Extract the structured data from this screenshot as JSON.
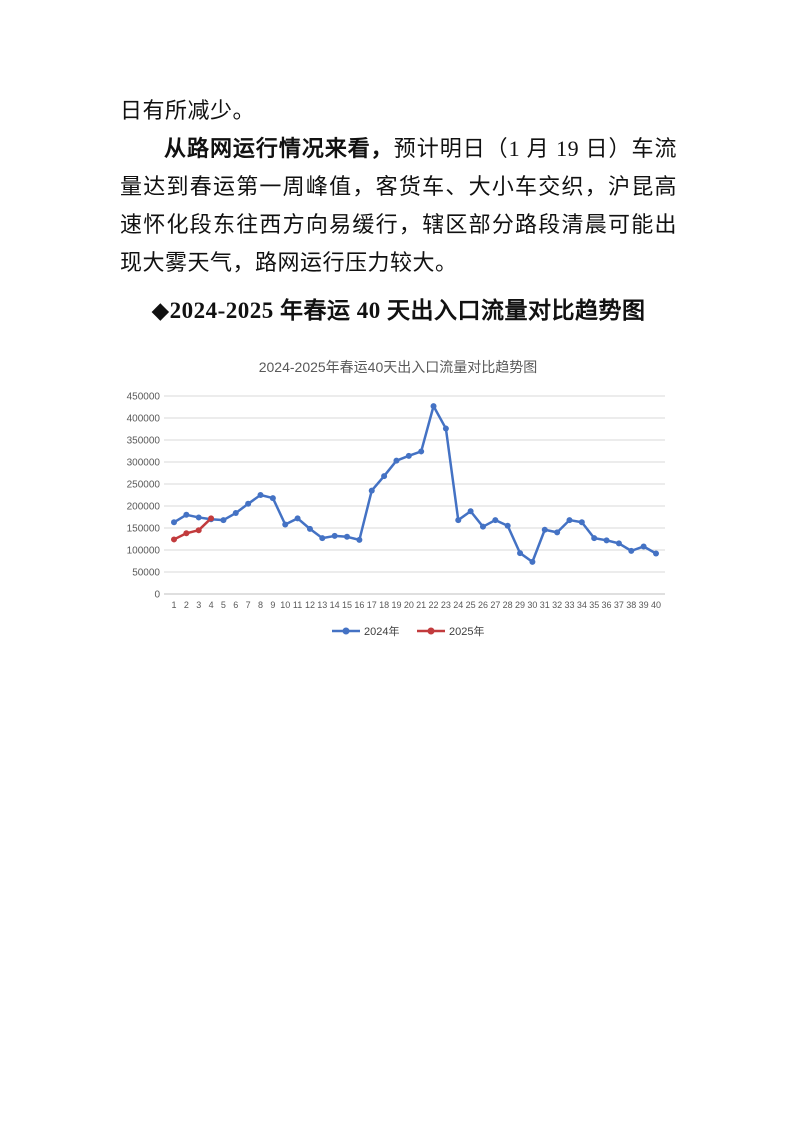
{
  "page": {
    "para1": "日有所减少。",
    "para2_bold": "从路网运行情况来看，",
    "para2_rest": "预计明日（1 月 19 日）车流量达到春运第一周峰值，客货车、大小车交织，沪昆高速怀化段东往西方向易缓行，辖区部分路段清晨可能出现大雾天气，路网运行压力较大。",
    "section_heading": "◆2024-2025 年春运 40 天出入口流量对比趋势图"
  },
  "chart_data": {
    "type": "line",
    "title": "2024-2025年春运40天出入口流量对比趋势图",
    "xlabel": "",
    "ylabel": "",
    "x": [
      1,
      2,
      3,
      4,
      5,
      6,
      7,
      8,
      9,
      10,
      11,
      12,
      13,
      14,
      15,
      16,
      17,
      18,
      19,
      20,
      21,
      22,
      23,
      24,
      25,
      26,
      27,
      28,
      29,
      30,
      31,
      32,
      33,
      34,
      35,
      36,
      37,
      38,
      39,
      40
    ],
    "series": [
      {
        "name": "2024年",
        "color": "#4472C4",
        "values": [
          163000,
          180000,
          174000,
          170000,
          168000,
          184000,
          205000,
          225000,
          218000,
          158000,
          172000,
          148000,
          127000,
          132000,
          130000,
          123000,
          235000,
          268000,
          303000,
          314000,
          324000,
          427000,
          376000,
          168000,
          188000,
          153000,
          168000,
          155000,
          93000,
          73000,
          146000,
          140000,
          168000,
          163000,
          127000,
          122000,
          115000,
          98000,
          108000,
          92000
        ]
      },
      {
        "name": "2025年",
        "color": "#C23B3D",
        "values": [
          124000,
          138000,
          145000,
          172000
        ]
      }
    ],
    "ylim": [
      0,
      450000
    ],
    "ytick_step": 50000,
    "grid": true,
    "legend_position": "bottom",
    "title_color": "#595959",
    "tick_label_color": "#595959",
    "grid_color": "#D9D9D9",
    "axis_color": "#BFBFBF"
  }
}
